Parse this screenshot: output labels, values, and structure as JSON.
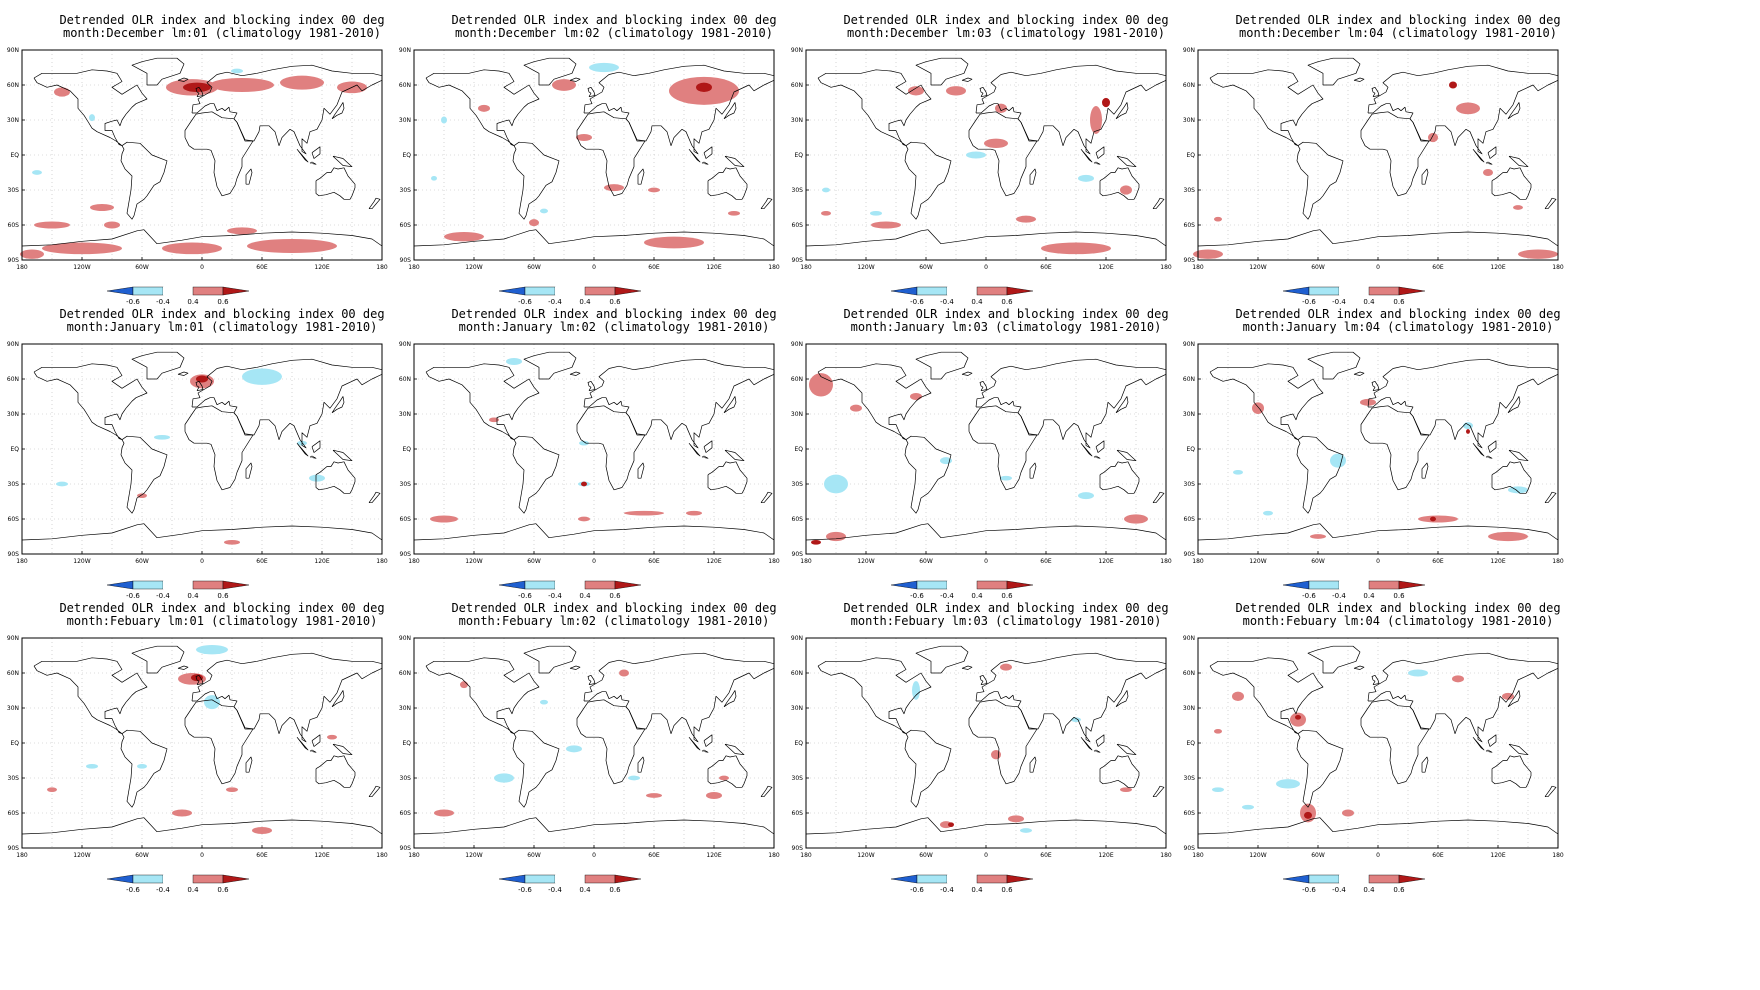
{
  "title_line1": "Detrended OLR index and blocking index 00 deg",
  "climatology": "(climatology 1981-2010)",
  "lat_labels": [
    "90N",
    "60N",
    "30N",
    "EQ",
    "30S",
    "60S",
    "90S"
  ],
  "lon_labels": [
    "180",
    "120W",
    "60W",
    "0",
    "60E",
    "120E",
    "180"
  ],
  "colorbar": {
    "labels": [
      "-0.6",
      "-0.4",
      "0.4",
      "0.6"
    ],
    "colors": {
      "neg_strong": "#1f5fd0",
      "neg_weak": "#a6e6f5",
      "pos_weak": "#e08080",
      "pos_strong": "#b01818"
    }
  },
  "panels": [
    {
      "month": "month:December",
      "lead": "lm:01",
      "pos": [
        [
          -10,
          58,
          26,
          7
        ],
        [
          40,
          60,
          32,
          6
        ],
        [
          100,
          62,
          22,
          6
        ],
        [
          -140,
          54,
          8,
          4
        ],
        [
          -100,
          -45,
          12,
          3
        ],
        [
          -150,
          -60,
          18,
          3
        ],
        [
          -90,
          -60,
          8,
          3
        ],
        [
          40,
          -65,
          15,
          3
        ],
        [
          -120,
          -80,
          40,
          5
        ],
        [
          -10,
          -80,
          30,
          5
        ],
        [
          90,
          -78,
          45,
          6
        ],
        [
          -170,
          -85,
          12,
          4
        ],
        [
          150,
          58,
          15,
          5
        ]
      ],
      "neg": [
        [
          -110,
          32,
          3,
          3
        ],
        [
          -165,
          -15,
          5,
          2
        ],
        [
          35,
          72,
          6,
          2
        ]
      ],
      "dark": [
        [
          -5,
          58,
          14,
          4
        ]
      ]
    },
    {
      "month": "month:December",
      "lead": "lm:02",
      "pos": [
        [
          110,
          55,
          35,
          12
        ],
        [
          -30,
          60,
          12,
          5
        ],
        [
          -110,
          40,
          6,
          3
        ],
        [
          -10,
          15,
          8,
          3
        ],
        [
          20,
          -28,
          10,
          3
        ],
        [
          60,
          -30,
          6,
          2
        ],
        [
          -130,
          -70,
          20,
          4
        ],
        [
          80,
          -75,
          30,
          5
        ],
        [
          -60,
          -58,
          5,
          3
        ],
        [
          140,
          -50,
          6,
          2
        ]
      ],
      "neg": [
        [
          10,
          75,
          15,
          4
        ],
        [
          -150,
          30,
          3,
          3
        ],
        [
          -160,
          -20,
          3,
          2
        ],
        [
          -50,
          -48,
          4,
          2
        ]
      ],
      "dark": [
        [
          110,
          58,
          8,
          4
        ]
      ]
    },
    {
      "month": "month:December",
      "lead": "lm:03",
      "pos": [
        [
          -70,
          55,
          8,
          4
        ],
        [
          -30,
          55,
          10,
          4
        ],
        [
          15,
          40,
          6,
          4
        ],
        [
          10,
          10,
          12,
          4
        ],
        [
          110,
          30,
          6,
          12
        ],
        [
          140,
          -30,
          6,
          4
        ],
        [
          -100,
          -60,
          15,
          3
        ],
        [
          90,
          -80,
          35,
          5
        ],
        [
          -160,
          -50,
          5,
          2
        ],
        [
          40,
          -55,
          10,
          3
        ]
      ],
      "neg": [
        [
          -10,
          0,
          10,
          3
        ],
        [
          -160,
          -30,
          4,
          2
        ],
        [
          100,
          -20,
          8,
          3
        ],
        [
          -110,
          -50,
          6,
          2
        ]
      ],
      "dark": [
        [
          120,
          45,
          4,
          4
        ]
      ]
    },
    {
      "month": "month:December",
      "lead": "lm:04",
      "pos": [
        [
          55,
          15,
          5,
          4
        ],
        [
          90,
          40,
          12,
          5
        ],
        [
          -170,
          -85,
          15,
          4
        ],
        [
          160,
          -85,
          20,
          4
        ],
        [
          -160,
          -55,
          4,
          2
        ],
        [
          110,
          -15,
          5,
          3
        ],
        [
          140,
          -45,
          5,
          2
        ]
      ],
      "neg": [],
      "dark": [
        [
          75,
          60,
          4,
          3
        ]
      ]
    },
    {
      "month": "month:January",
      "lead": "lm:01",
      "pos": [
        [
          0,
          58,
          12,
          6
        ],
        [
          -60,
          -40,
          5,
          2
        ],
        [
          30,
          -80,
          8,
          2
        ]
      ],
      "neg": [
        [
          60,
          62,
          20,
          7
        ],
        [
          -140,
          -30,
          6,
          2
        ],
        [
          -40,
          10,
          8,
          2
        ],
        [
          100,
          5,
          5,
          2
        ],
        [
          115,
          -25,
          8,
          3
        ]
      ],
      "dark": [
        [
          0,
          60,
          6,
          3
        ]
      ]
    },
    {
      "month": "month:January",
      "lead": "lm:02",
      "pos": [
        [
          -150,
          -60,
          14,
          3
        ],
        [
          -100,
          25,
          5,
          2
        ],
        [
          50,
          -55,
          20,
          2
        ],
        [
          -10,
          -60,
          6,
          2
        ],
        [
          100,
          -55,
          8,
          2
        ]
      ],
      "neg": [
        [
          -80,
          75,
          8,
          3
        ],
        [
          -10,
          -30,
          6,
          2
        ],
        [
          -10,
          5,
          5,
          2
        ]
      ],
      "dark": [
        [
          -10,
          -30,
          3,
          2
        ]
      ]
    },
    {
      "month": "month:January",
      "lead": "lm:03",
      "pos": [
        [
          -165,
          55,
          12,
          10
        ],
        [
          -130,
          35,
          6,
          3
        ],
        [
          -150,
          -75,
          10,
          4
        ],
        [
          150,
          -60,
          12,
          4
        ],
        [
          -70,
          45,
          6,
          3
        ]
      ],
      "neg": [
        [
          -150,
          -30,
          12,
          8
        ],
        [
          -40,
          -10,
          6,
          3
        ],
        [
          100,
          -40,
          8,
          3
        ],
        [
          20,
          -25,
          6,
          2
        ]
      ],
      "dark": [
        [
          -170,
          -80,
          5,
          2
        ]
      ]
    },
    {
      "month": "month:January",
      "lead": "lm:04",
      "pos": [
        [
          -120,
          35,
          6,
          5
        ],
        [
          -10,
          40,
          8,
          3
        ],
        [
          60,
          -60,
          20,
          3
        ],
        [
          130,
          -75,
          20,
          4
        ],
        [
          -60,
          -75,
          8,
          2
        ]
      ],
      "neg": [
        [
          -40,
          -10,
          8,
          6
        ],
        [
          -140,
          -20,
          5,
          2
        ],
        [
          90,
          20,
          5,
          3
        ],
        [
          140,
          -35,
          10,
          3
        ],
        [
          -110,
          -55,
          5,
          2
        ]
      ],
      "dark": [
        [
          90,
          15,
          2,
          2
        ],
        [
          55,
          -60,
          3,
          2
        ]
      ]
    },
    {
      "month": "month:Febuary",
      "lead": "lm:01",
      "pos": [
        [
          -10,
          55,
          14,
          5
        ],
        [
          30,
          -40,
          6,
          2
        ],
        [
          -20,
          -60,
          10,
          3
        ],
        [
          60,
          -75,
          10,
          3
        ],
        [
          -150,
          -40,
          5,
          2
        ],
        [
          130,
          5,
          5,
          2
        ]
      ],
      "neg": [
        [
          10,
          80,
          16,
          4
        ],
        [
          10,
          35,
          8,
          6
        ],
        [
          -110,
          -20,
          6,
          2
        ],
        [
          -60,
          -20,
          5,
          2
        ]
      ],
      "dark": [
        [
          -5,
          56,
          6,
          3
        ]
      ]
    },
    {
      "month": "month:Febuary",
      "lead": "lm:02",
      "pos": [
        [
          -150,
          -60,
          10,
          3
        ],
        [
          120,
          -45,
          8,
          3
        ],
        [
          60,
          -45,
          8,
          2
        ],
        [
          -130,
          50,
          4,
          3
        ],
        [
          30,
          60,
          5,
          3
        ],
        [
          130,
          -30,
          5,
          2
        ]
      ],
      "neg": [
        [
          -90,
          -30,
          10,
          4
        ],
        [
          -20,
          -5,
          8,
          3
        ],
        [
          40,
          -30,
          6,
          2
        ],
        [
          -50,
          35,
          4,
          2
        ]
      ],
      "dark": []
    },
    {
      "month": "month:Febuary",
      "lead": "lm:03",
      "pos": [
        [
          10,
          -10,
          5,
          4
        ],
        [
          -40,
          -70,
          6,
          3
        ],
        [
          30,
          -65,
          8,
          3
        ],
        [
          20,
          65,
          6,
          3
        ],
        [
          140,
          -40,
          6,
          2
        ]
      ],
      "neg": [
        [
          -70,
          45,
          4,
          8
        ],
        [
          40,
          -75,
          6,
          2
        ],
        [
          90,
          20,
          5,
          2
        ]
      ],
      "dark": [
        [
          -35,
          -70,
          3,
          2
        ]
      ]
    },
    {
      "month": "month:Febuary",
      "lead": "lm:04",
      "pos": [
        [
          -70,
          -60,
          8,
          8
        ],
        [
          -80,
          20,
          8,
          6
        ],
        [
          -140,
          40,
          6,
          4
        ],
        [
          80,
          55,
          6,
          3
        ],
        [
          130,
          40,
          6,
          3
        ],
        [
          -30,
          -60,
          6,
          3
        ],
        [
          -160,
          10,
          4,
          2
        ]
      ],
      "neg": [
        [
          -90,
          -35,
          12,
          4
        ],
        [
          -130,
          -55,
          6,
          2
        ],
        [
          40,
          60,
          10,
          3
        ],
        [
          -160,
          -40,
          6,
          2
        ]
      ],
      "dark": [
        [
          -70,
          -62,
          4,
          3
        ],
        [
          -80,
          22,
          3,
          2
        ]
      ]
    }
  ]
}
